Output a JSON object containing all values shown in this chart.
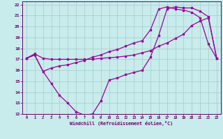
{
  "xlabel": "Windchill (Refroidissement éolien,°C)",
  "bg_color": "#c8ecec",
  "grid_color": "#aacfcf",
  "line_color": "#990099",
  "tick_color": "#660066",
  "xlim": [
    -0.5,
    23.5
  ],
  "ylim": [
    12,
    22.3
  ],
  "xticks": [
    0,
    1,
    2,
    3,
    4,
    5,
    6,
    7,
    8,
    9,
    10,
    11,
    12,
    13,
    14,
    15,
    16,
    17,
    18,
    19,
    20,
    21,
    22,
    23
  ],
  "yticks": [
    12,
    13,
    14,
    15,
    16,
    17,
    18,
    19,
    20,
    21,
    22
  ],
  "line1_x": [
    0,
    1,
    2,
    3,
    4,
    5,
    6,
    7,
    8,
    9,
    10,
    11,
    12,
    13,
    14,
    15,
    16,
    17,
    18,
    19,
    20,
    21,
    22,
    23
  ],
  "line1_y": [
    17.1,
    17.5,
    17.1,
    17.0,
    17.0,
    17.0,
    17.0,
    17.0,
    17.0,
    17.1,
    17.15,
    17.2,
    17.3,
    17.4,
    17.6,
    17.8,
    18.2,
    18.5,
    18.9,
    19.3,
    20.1,
    20.5,
    20.8,
    17.1
  ],
  "line2_x": [
    0,
    1,
    2,
    3,
    4,
    5,
    6,
    7,
    8,
    9,
    10,
    11,
    12,
    13,
    14,
    15,
    16,
    17,
    18,
    19,
    20,
    21,
    22,
    23
  ],
  "line2_y": [
    17.1,
    17.4,
    15.9,
    16.2,
    16.4,
    16.5,
    16.7,
    16.9,
    17.2,
    17.4,
    17.7,
    17.9,
    18.2,
    18.5,
    18.7,
    19.7,
    21.6,
    21.8,
    21.6,
    21.5,
    21.3,
    20.8,
    18.4,
    17.1
  ],
  "line3_x": [
    0,
    1,
    2,
    3,
    4,
    5,
    6,
    7,
    8,
    9,
    10,
    11,
    12,
    13,
    14,
    15,
    16,
    17,
    18,
    19,
    20,
    21,
    22,
    23
  ],
  "line3_y": [
    17.1,
    17.4,
    15.9,
    14.8,
    13.7,
    13.0,
    12.2,
    11.9,
    12.0,
    13.2,
    15.1,
    15.3,
    15.6,
    15.8,
    16.0,
    17.2,
    19.2,
    21.6,
    21.8,
    21.7,
    21.7,
    21.4,
    20.9,
    17.1
  ]
}
